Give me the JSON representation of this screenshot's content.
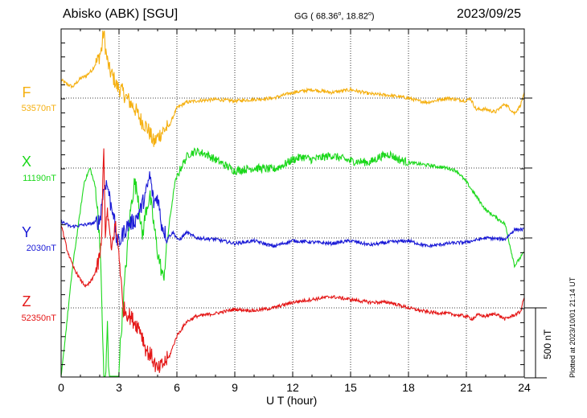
{
  "header": {
    "station": "Abisko (ABK)  [SGU]",
    "coords_prefix": "GG ( 68.36",
    "coords_mid": ",  18.82",
    "coords_suffix": ")",
    "degree_mark": "o",
    "date": "2023/09/25"
  },
  "footer": {
    "plotted": "Plotted at 2023/10/01 21:14 UT",
    "scale_label": "500 nT"
  },
  "chart_data": {
    "type": "line",
    "xlabel": "U T (hour)",
    "xlim": [
      0,
      24
    ],
    "xticks": [
      "0",
      "3",
      "6",
      "9",
      "12",
      "15",
      "18",
      "21",
      "24"
    ],
    "scale_bar_nT": 500,
    "series": [
      {
        "name": "F",
        "baseline": "53570nT",
        "color": "#f5b011",
        "x": [
          0,
          0.3,
          0.6,
          1,
          1.3,
          1.6,
          1.9,
          2.1,
          2.2,
          2.35,
          2.5,
          2.7,
          2.9,
          3.1,
          3.4,
          3.8,
          4.1,
          4.4,
          4.6,
          4.8,
          5.0,
          5.3,
          5.6,
          6.0,
          6.5,
          7,
          8,
          9,
          10,
          11,
          12,
          13,
          14,
          15,
          16,
          17,
          18,
          18.5,
          19,
          20,
          21,
          21.2,
          21.5,
          22,
          22.5,
          23,
          23.5,
          23.8,
          24
        ],
        "y": [
          130,
          100,
          80,
          140,
          160,
          200,
          270,
          350,
          480,
          300,
          200,
          150,
          80,
          60,
          0,
          -70,
          -150,
          -200,
          -250,
          -320,
          -280,
          -230,
          -200,
          -70,
          -30,
          -20,
          -10,
          -20,
          -10,
          0,
          40,
          60,
          40,
          60,
          30,
          20,
          0,
          -20,
          -30,
          0,
          -20,
          0,
          -80,
          -80,
          -100,
          -40,
          -110,
          -50,
          30
        ]
      },
      {
        "name": "X",
        "baseline": "11190nT",
        "color": "#1bd81b",
        "x": [
          0,
          0.3,
          0.6,
          0.9,
          1.2,
          1.5,
          1.8,
          2.0,
          2.15,
          2.25,
          2.4,
          2.5,
          2.6,
          2.75,
          2.85,
          3.0,
          3.3,
          3.6,
          3.8,
          4.0,
          4.2,
          4.4,
          4.6,
          4.8,
          5.0,
          5.3,
          5.6,
          5.9,
          6.2,
          6.6,
          7,
          7.5,
          8,
          9,
          10,
          11,
          11.5,
          12,
          12.5,
          13,
          14,
          15,
          16,
          16.5,
          17,
          17.5,
          18,
          19,
          20,
          20.5,
          21,
          21.5,
          22,
          23,
          23.5,
          24
        ],
        "y": [
          -1500,
          -1100,
          -700,
          -400,
          -100,
          0,
          -150,
          -500,
          -1150,
          -1800,
          -1100,
          -1600,
          -2000,
          -1700,
          -2100,
          -1400,
          -800,
          -300,
          -100,
          -200,
          -500,
          -300,
          -200,
          -400,
          -600,
          -800,
          -400,
          -100,
          0,
          100,
          120,
          100,
          60,
          -20,
          0,
          -10,
          20,
          60,
          80,
          60,
          90,
          50,
          40,
          80,
          100,
          60,
          40,
          20,
          0,
          -20,
          -100,
          -200,
          -300,
          -400,
          -700,
          -600
        ]
      },
      {
        "name": "Y",
        "baseline": "2030nT",
        "color": "#1a1ad6",
        "x": [
          0,
          0.5,
          1,
          1.5,
          2.0,
          2.15,
          2.3,
          2.45,
          2.55,
          2.7,
          2.85,
          3.0,
          3.2,
          3.5,
          3.8,
          4.1,
          4.4,
          4.6,
          4.8,
          5.0,
          5.2,
          5.5,
          5.8,
          6.1,
          6.5,
          7,
          8,
          9,
          10,
          11,
          12,
          13,
          14,
          15,
          16,
          17,
          18,
          19,
          20,
          21,
          22,
          23,
          23.5,
          24
        ],
        "y": [
          120,
          80,
          90,
          100,
          120,
          300,
          400,
          350,
          250,
          200,
          0,
          -40,
          30,
          100,
          120,
          200,
          320,
          450,
          250,
          300,
          100,
          0,
          40,
          -20,
          40,
          0,
          -10,
          -40,
          -20,
          -60,
          -20,
          -30,
          -40,
          -20,
          -50,
          -30,
          -20,
          -60,
          -40,
          -30,
          0,
          -10,
          60,
          60
        ]
      },
      {
        "name": "Z",
        "baseline": "52350nT",
        "color": "#e41717",
        "x": [
          0,
          0.3,
          0.6,
          1,
          1.3,
          1.6,
          1.9,
          2.1,
          2.2,
          2.3,
          2.4,
          2.6,
          2.8,
          3.0,
          3.2,
          3.5,
          3.8,
          4.1,
          4.4,
          4.7,
          5.0,
          5.3,
          5.6,
          6.0,
          6.5,
          7,
          8,
          9,
          10,
          11,
          12,
          13,
          14,
          15,
          16,
          17,
          18,
          19,
          20,
          21,
          21.3,
          21.6,
          22,
          22.5,
          23,
          23.5,
          23.8,
          24
        ],
        "y": [
          600,
          420,
          300,
          200,
          150,
          200,
          300,
          450,
          1200,
          500,
          700,
          400,
          600,
          400,
          0,
          -50,
          -100,
          -150,
          -300,
          -350,
          -450,
          -400,
          -350,
          -200,
          -100,
          -60,
          -40,
          -10,
          -20,
          0,
          40,
          60,
          80,
          60,
          40,
          40,
          0,
          -30,
          -40,
          -60,
          -80,
          -50,
          -60,
          -40,
          -80,
          -50,
          -30,
          80
        ]
      }
    ]
  }
}
